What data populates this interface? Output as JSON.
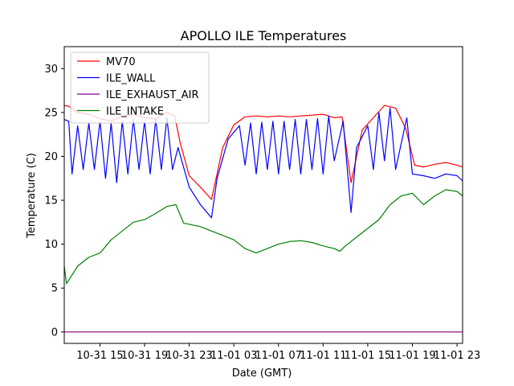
{
  "chart_data": {
    "type": "line",
    "title": "APOLLO ILE Temperatures",
    "xlabel": "Date (GMT)",
    "ylabel": "Temperature (C)",
    "xlim_hours_since_10_31_00": [
      11.8,
      47.5
    ],
    "ylim": [
      -1.3,
      32.5
    ],
    "yticks": [
      0,
      5,
      10,
      15,
      20,
      25,
      30
    ],
    "xticks": [
      {
        "hour": 15,
        "label": "10-31 15"
      },
      {
        "hour": 19,
        "label": "10-31 19"
      },
      {
        "hour": 23,
        "label": "10-31 23"
      },
      {
        "hour": 27,
        "label": "11-01 03"
      },
      {
        "hour": 31,
        "label": "11-01 07"
      },
      {
        "hour": 35,
        "label": "11-01 11"
      },
      {
        "hour": 39,
        "label": "11-01 15"
      },
      {
        "hour": 43,
        "label": "11-01 19"
      },
      {
        "hour": 47,
        "label": "11-01 23"
      }
    ],
    "legend": {
      "placement": "top-left"
    },
    "series": [
      {
        "name": "MV70",
        "color": "#ff0000",
        "x": [
          11.8,
          12.2,
          13.0,
          14.0,
          15.0,
          16.0,
          17.0,
          18.0,
          19.0,
          20.0,
          21.0,
          21.7,
          22.2,
          23.0,
          24.0,
          25.0,
          26.0,
          27.0,
          28.0,
          29.0,
          30.0,
          31.0,
          32.0,
          33.0,
          34.0,
          35.0,
          36.0,
          36.7,
          37.5,
          38.5,
          39.5,
          40.5,
          41.5,
          42.4,
          43.2,
          44.0,
          45.0,
          46.0,
          47.0,
          47.5
        ],
        "y": [
          25.8,
          25.7,
          25.0,
          24.8,
          24.3,
          24.0,
          24.6,
          24.8,
          24.4,
          24.3,
          25.0,
          24.6,
          21.5,
          17.8,
          16.5,
          15.1,
          21.0,
          23.6,
          24.5,
          24.6,
          24.5,
          24.6,
          24.5,
          24.6,
          24.7,
          24.8,
          24.4,
          24.5,
          17.0,
          23.0,
          24.4,
          25.8,
          25.5,
          23.2,
          19.0,
          18.8,
          19.1,
          19.3,
          19.0,
          18.8
        ]
      },
      {
        "name": "ILE_WALL",
        "color": "#0000ff",
        "x": [
          11.8,
          12.2,
          12.5,
          13.0,
          13.5,
          14.0,
          14.5,
          15.0,
          15.5,
          16.0,
          16.5,
          17.0,
          17.5,
          18.0,
          18.5,
          19.0,
          19.5,
          20.0,
          20.5,
          21.0,
          21.5,
          22.0,
          23.0,
          24.0,
          25.0,
          25.5,
          26.5,
          27.5,
          28.0,
          28.5,
          29.0,
          29.5,
          30.0,
          30.5,
          31.0,
          31.5,
          32.0,
          32.5,
          33.0,
          33.5,
          34.0,
          34.5,
          35.0,
          35.5,
          36.0,
          36.8,
          37.5,
          38.0,
          39.0,
          39.5,
          40.0,
          40.5,
          41.0,
          41.5,
          42.5,
          43.0,
          44.0,
          45.0,
          46.0,
          47.0,
          47.5
        ],
        "y": [
          24.2,
          24.0,
          18.0,
          23.5,
          18.5,
          23.8,
          18.5,
          24.0,
          17.5,
          23.8,
          17.0,
          24.0,
          18.0,
          24.2,
          18.5,
          24.0,
          18.0,
          24.2,
          18.5,
          24.4,
          18.5,
          21.0,
          16.5,
          14.5,
          13.0,
          17.5,
          22.0,
          23.5,
          19.0,
          23.8,
          18.0,
          23.9,
          18.5,
          24.0,
          18.0,
          24.0,
          18.5,
          24.2,
          18.0,
          24.2,
          18.5,
          24.3,
          18.0,
          24.6,
          19.5,
          24.0,
          13.6,
          21.0,
          23.5,
          18.5,
          25.0,
          19.5,
          25.5,
          18.5,
          24.4,
          18.0,
          17.8,
          17.5,
          18.0,
          17.8,
          17.2
        ]
      },
      {
        "name": "ILE_EXHAUST_AIR",
        "color": "#800080",
        "x": [
          11.8,
          47.5
        ],
        "y": [
          0.0,
          0.0
        ]
      },
      {
        "name": "ILE_INTAKE",
        "color": "#008000",
        "x": [
          11.8,
          12.0,
          13.0,
          14.0,
          15.0,
          16.0,
          17.0,
          18.0,
          19.0,
          20.0,
          21.0,
          21.8,
          22.5,
          24.0,
          25.0,
          26.0,
          27.0,
          28.0,
          29.0,
          30.0,
          31.0,
          32.0,
          33.0,
          34.0,
          35.0,
          36.0,
          36.5,
          37.0,
          38.0,
          39.0,
          40.0,
          41.0,
          42.0,
          43.0,
          44.0,
          45.0,
          46.0,
          47.0,
          47.5
        ],
        "y": [
          7.5,
          5.5,
          7.5,
          8.5,
          9.0,
          10.5,
          11.5,
          12.5,
          12.8,
          13.5,
          14.3,
          14.5,
          12.4,
          12.0,
          11.5,
          11.0,
          10.5,
          9.5,
          9.0,
          9.5,
          10.0,
          10.3,
          10.4,
          10.2,
          9.8,
          9.5,
          9.2,
          9.8,
          10.8,
          11.8,
          12.8,
          14.5,
          15.5,
          15.8,
          14.5,
          15.5,
          16.2,
          16.0,
          15.5
        ]
      }
    ]
  }
}
